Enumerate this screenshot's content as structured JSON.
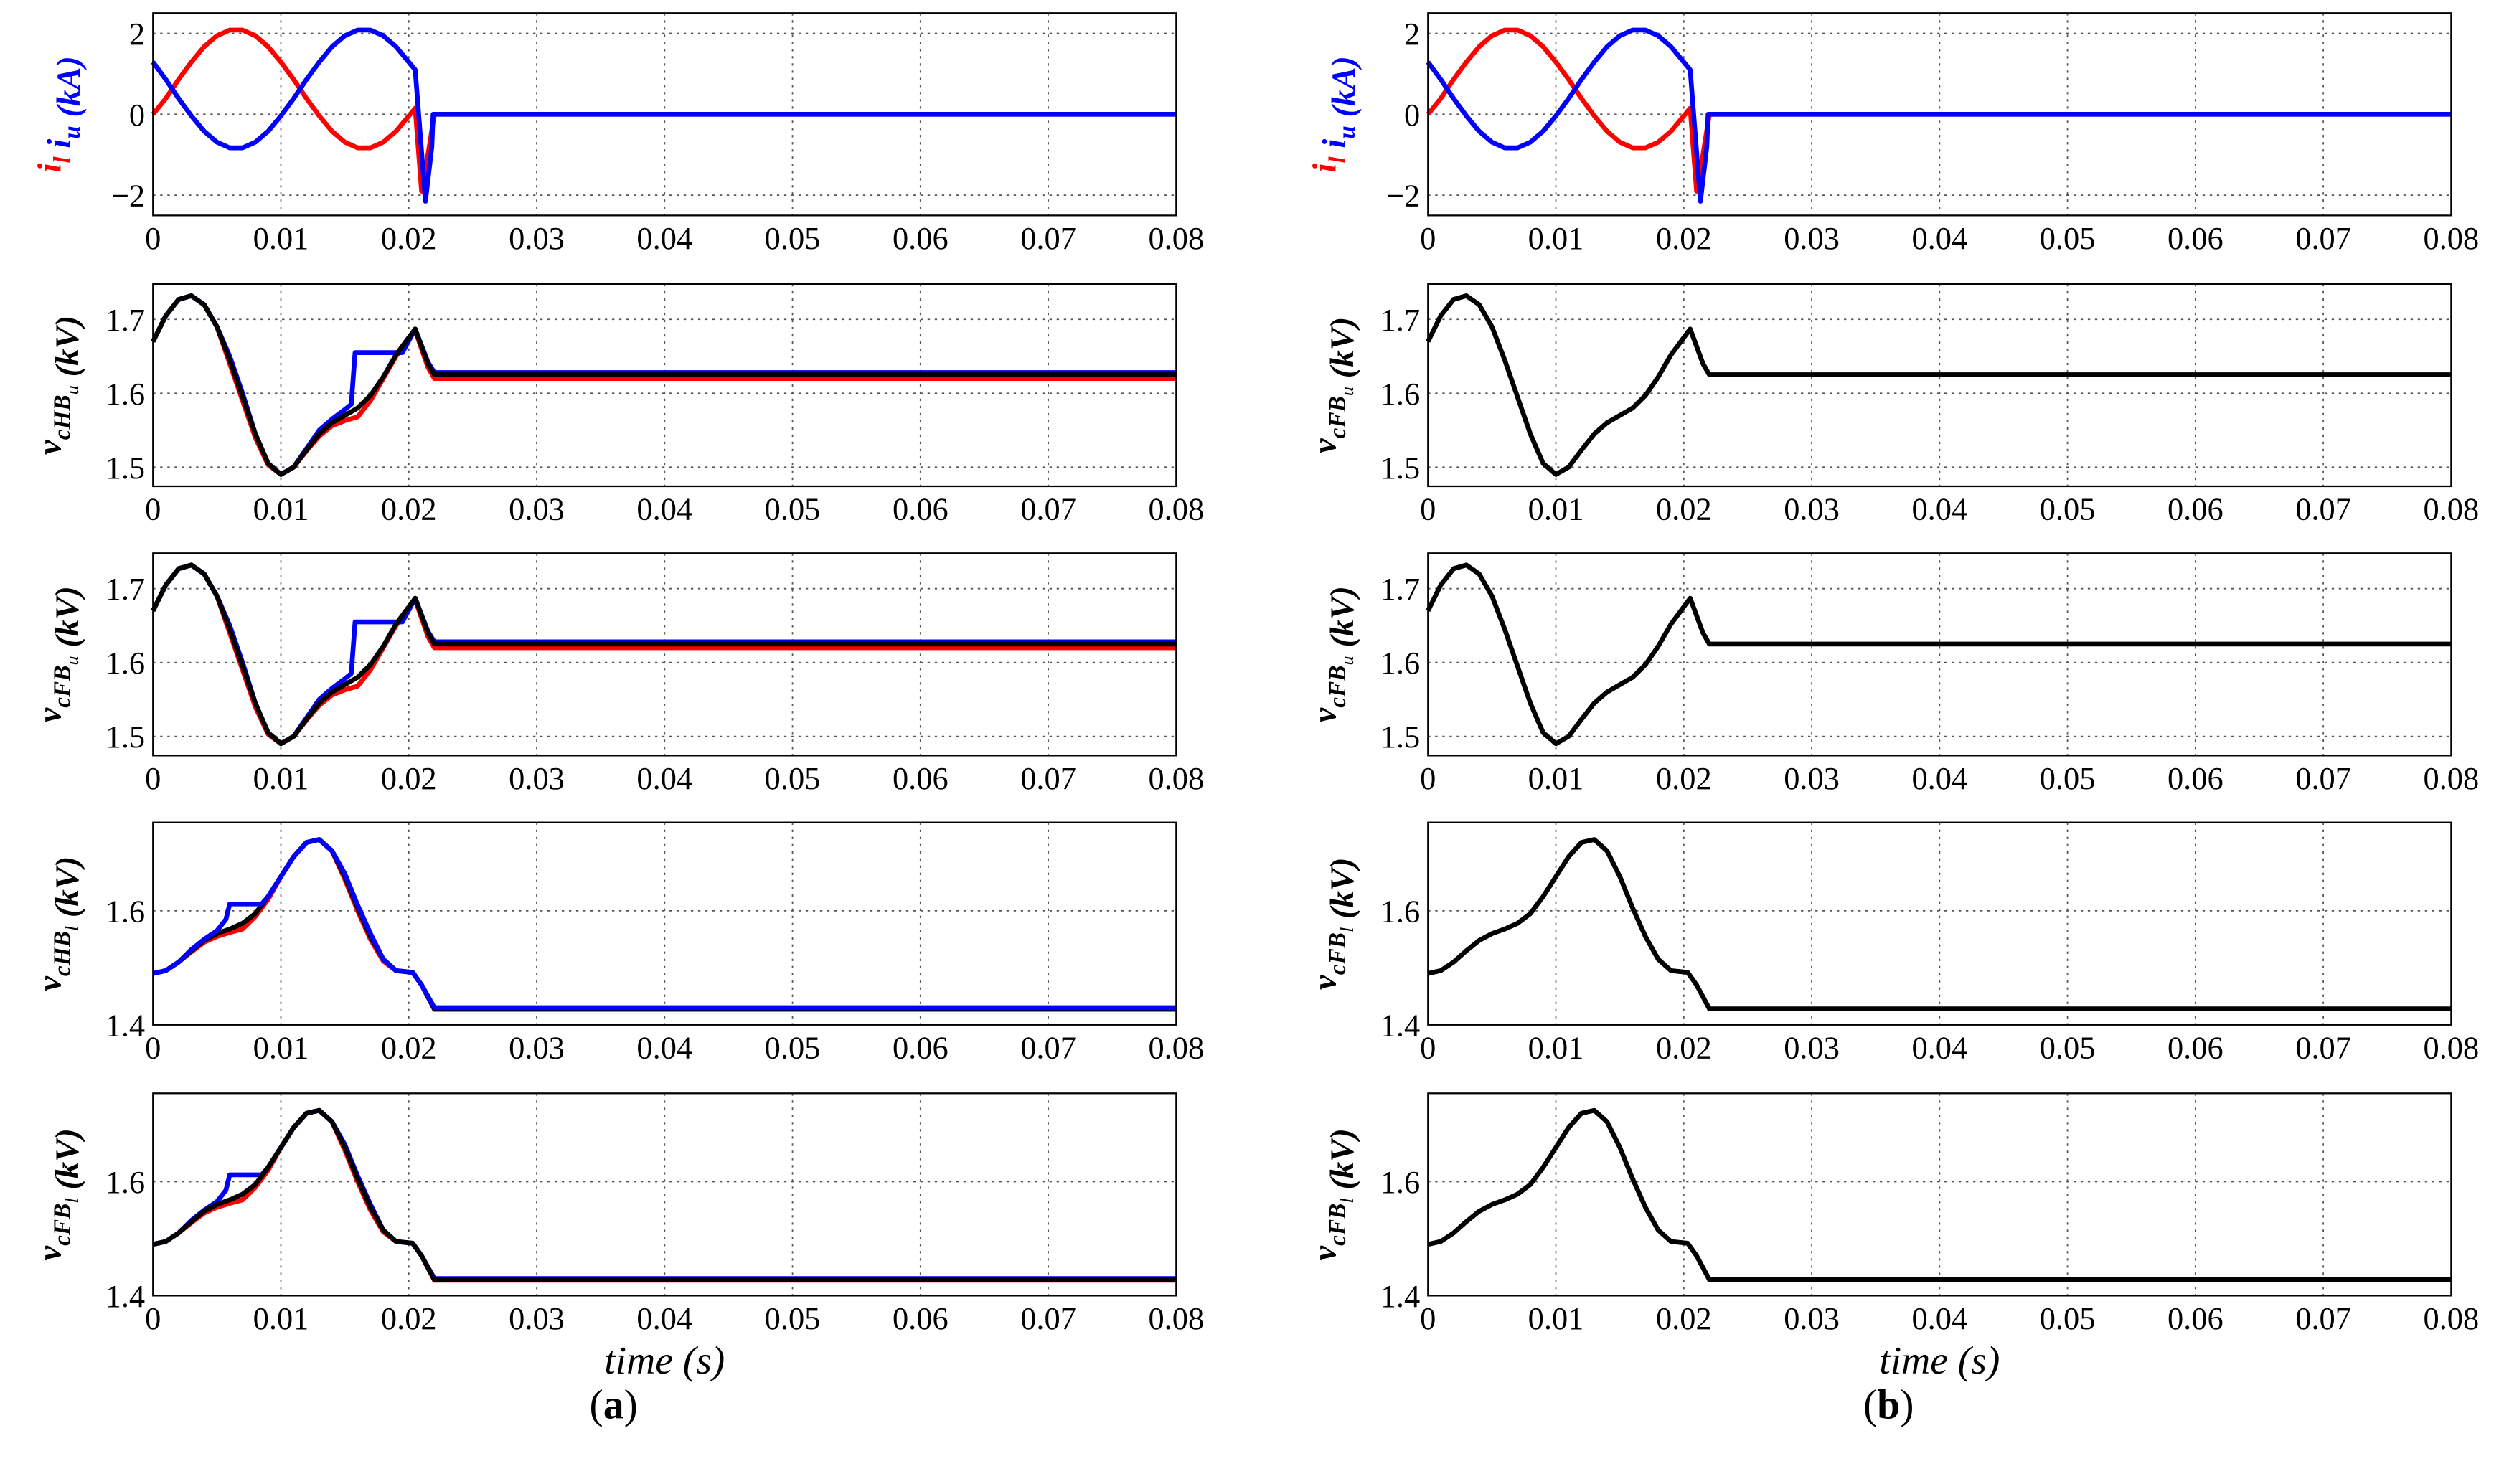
{
  "curves": {
    "IL": [
      [
        0,
        0
      ],
      [
        0.001,
        0.39
      ],
      [
        0.002,
        0.86
      ],
      [
        0.003,
        1.29
      ],
      [
        0.004,
        1.67
      ],
      [
        0.005,
        1.94
      ],
      [
        0.006,
        2.08
      ],
      [
        0.007,
        2.08
      ],
      [
        0.008,
        1.94
      ],
      [
        0.009,
        1.67
      ],
      [
        0.01,
        1.29
      ],
      [
        0.011,
        0.86
      ],
      [
        0.012,
        0.39
      ],
      [
        0.013,
        -0.04
      ],
      [
        0.014,
        -0.42
      ],
      [
        0.015,
        -0.69
      ],
      [
        0.016,
        -0.83
      ],
      [
        0.017,
        -0.83
      ],
      [
        0.018,
        -0.69
      ],
      [
        0.019,
        -0.42
      ],
      [
        0.02,
        -0.04
      ],
      [
        0.0205,
        0.15
      ],
      [
        0.021,
        -1.9
      ],
      [
        0.0215,
        -1.0
      ],
      [
        0.022,
        0
      ],
      [
        0.08,
        0
      ]
    ],
    "IU": [
      [
        0,
        1.29
      ],
      [
        0.001,
        0.86
      ],
      [
        0.002,
        0.39
      ],
      [
        0.003,
        -0.04
      ],
      [
        0.004,
        -0.42
      ],
      [
        0.005,
        -0.69
      ],
      [
        0.006,
        -0.83
      ],
      [
        0.007,
        -0.83
      ],
      [
        0.008,
        -0.69
      ],
      [
        0.009,
        -0.42
      ],
      [
        0.01,
        -0.04
      ],
      [
        0.011,
        0.39
      ],
      [
        0.012,
        0.86
      ],
      [
        0.013,
        1.29
      ],
      [
        0.014,
        1.67
      ],
      [
        0.015,
        1.94
      ],
      [
        0.016,
        2.08
      ],
      [
        0.017,
        2.08
      ],
      [
        0.018,
        1.94
      ],
      [
        0.019,
        1.67
      ],
      [
        0.0205,
        1.1
      ],
      [
        0.0213,
        -2.15
      ],
      [
        0.0218,
        -0.8
      ],
      [
        0.0219,
        0
      ],
      [
        0.08,
        0
      ]
    ],
    "VU_black": [
      [
        0,
        1.67
      ],
      [
        0.001,
        1.705
      ],
      [
        0.002,
        1.727
      ],
      [
        0.003,
        1.732
      ],
      [
        0.004,
        1.72
      ],
      [
        0.005,
        1.69
      ],
      [
        0.006,
        1.645
      ],
      [
        0.007,
        1.595
      ],
      [
        0.008,
        1.545
      ],
      [
        0.009,
        1.505
      ],
      [
        0.01,
        1.49
      ],
      [
        0.011,
        1.5
      ],
      [
        0.012,
        1.523
      ],
      [
        0.013,
        1.545
      ],
      [
        0.014,
        1.56
      ],
      [
        0.015,
        1.57
      ],
      [
        0.016,
        1.58
      ],
      [
        0.017,
        1.597
      ],
      [
        0.018,
        1.622
      ],
      [
        0.019,
        1.652
      ],
      [
        0.0205,
        1.687
      ],
      [
        0.0215,
        1.64
      ],
      [
        0.022,
        1.625
      ],
      [
        0.08,
        1.625
      ]
    ],
    "VU_blue": [
      [
        0,
        1.67
      ],
      [
        0.001,
        1.705
      ],
      [
        0.002,
        1.727
      ],
      [
        0.003,
        1.732
      ],
      [
        0.004,
        1.72
      ],
      [
        0.005,
        1.69
      ],
      [
        0.006,
        1.65
      ],
      [
        0.007,
        1.6
      ],
      [
        0.008,
        1.545
      ],
      [
        0.009,
        1.505
      ],
      [
        0.01,
        1.49
      ],
      [
        0.011,
        1.5
      ],
      [
        0.012,
        1.525
      ],
      [
        0.013,
        1.55
      ],
      [
        0.014,
        1.565
      ],
      [
        0.015,
        1.578
      ],
      [
        0.0155,
        1.585
      ],
      [
        0.0158,
        1.655
      ],
      [
        0.0195,
        1.655
      ],
      [
        0.0205,
        1.687
      ],
      [
        0.0215,
        1.642
      ],
      [
        0.022,
        1.628
      ],
      [
        0.08,
        1.628
      ]
    ],
    "VU_red": [
      [
        0,
        1.67
      ],
      [
        0.001,
        1.705
      ],
      [
        0.002,
        1.727
      ],
      [
        0.003,
        1.732
      ],
      [
        0.004,
        1.72
      ],
      [
        0.005,
        1.69
      ],
      [
        0.006,
        1.64
      ],
      [
        0.007,
        1.59
      ],
      [
        0.008,
        1.54
      ],
      [
        0.009,
        1.503
      ],
      [
        0.01,
        1.49
      ],
      [
        0.011,
        1.5
      ],
      [
        0.012,
        1.522
      ],
      [
        0.013,
        1.542
      ],
      [
        0.014,
        1.556
      ],
      [
        0.015,
        1.563
      ],
      [
        0.016,
        1.568
      ],
      [
        0.017,
        1.59
      ],
      [
        0.018,
        1.62
      ],
      [
        0.019,
        1.65
      ],
      [
        0.0205,
        1.685
      ],
      [
        0.0215,
        1.635
      ],
      [
        0.022,
        1.62
      ],
      [
        0.08,
        1.62
      ]
    ],
    "VL_black": [
      [
        0,
        1.49
      ],
      [
        0.001,
        1.495
      ],
      [
        0.002,
        1.51
      ],
      [
        0.003,
        1.53
      ],
      [
        0.004,
        1.548
      ],
      [
        0.005,
        1.56
      ],
      [
        0.006,
        1.568
      ],
      [
        0.007,
        1.578
      ],
      [
        0.008,
        1.595
      ],
      [
        0.009,
        1.625
      ],
      [
        0.01,
        1.66
      ],
      [
        0.011,
        1.695
      ],
      [
        0.012,
        1.72
      ],
      [
        0.013,
        1.725
      ],
      [
        0.014,
        1.705
      ],
      [
        0.015,
        1.66
      ],
      [
        0.016,
        1.605
      ],
      [
        0.017,
        1.555
      ],
      [
        0.018,
        1.515
      ],
      [
        0.019,
        1.495
      ],
      [
        0.0203,
        1.492
      ],
      [
        0.021,
        1.47
      ],
      [
        0.022,
        1.428
      ],
      [
        0.08,
        1.428
      ]
    ],
    "VL_blue": [
      [
        0,
        1.49
      ],
      [
        0.001,
        1.495
      ],
      [
        0.002,
        1.51
      ],
      [
        0.003,
        1.532
      ],
      [
        0.004,
        1.55
      ],
      [
        0.005,
        1.565
      ],
      [
        0.0057,
        1.585
      ],
      [
        0.006,
        1.612
      ],
      [
        0.0085,
        1.612
      ],
      [
        0.009,
        1.625
      ],
      [
        0.01,
        1.66
      ],
      [
        0.011,
        1.695
      ],
      [
        0.012,
        1.72
      ],
      [
        0.013,
        1.725
      ],
      [
        0.014,
        1.705
      ],
      [
        0.015,
        1.665
      ],
      [
        0.016,
        1.61
      ],
      [
        0.017,
        1.56
      ],
      [
        0.018,
        1.515
      ],
      [
        0.019,
        1.495
      ],
      [
        0.0203,
        1.492
      ],
      [
        0.021,
        1.47
      ],
      [
        0.022,
        1.43
      ],
      [
        0.08,
        1.43
      ]
    ],
    "VL_red": [
      [
        0,
        1.49
      ],
      [
        0.001,
        1.495
      ],
      [
        0.002,
        1.51
      ],
      [
        0.003,
        1.528
      ],
      [
        0.004,
        1.545
      ],
      [
        0.005,
        1.555
      ],
      [
        0.006,
        1.562
      ],
      [
        0.007,
        1.568
      ],
      [
        0.008,
        1.59
      ],
      [
        0.009,
        1.62
      ],
      [
        0.01,
        1.66
      ],
      [
        0.011,
        1.695
      ],
      [
        0.012,
        1.72
      ],
      [
        0.013,
        1.725
      ],
      [
        0.014,
        1.705
      ],
      [
        0.015,
        1.655
      ],
      [
        0.016,
        1.6
      ],
      [
        0.017,
        1.55
      ],
      [
        0.018,
        1.512
      ],
      [
        0.019,
        1.495
      ],
      [
        0.0203,
        1.492
      ],
      [
        0.021,
        1.47
      ],
      [
        0.022,
        1.427
      ],
      [
        0.08,
        1.427
      ]
    ]
  },
  "colors": {
    "red": "#ff0000",
    "blue": "#0000ff",
    "black": "#000000",
    "grid": "#555555"
  },
  "panel_labels": {
    "a": "a",
    "b": "b"
  },
  "chart_data": [
    {
      "type": "line",
      "panel": "a",
      "row": 0,
      "ylabel": [
        {
          "t": "i",
          "sub": "l",
          "color": "#ff0000"
        },
        {
          "t": " i",
          "sub": "u",
          "color": "#0000ff"
        },
        {
          "t": " (kA)",
          "color": "#0000ff"
        }
      ],
      "xlabel": "",
      "xlim": [
        0,
        0.08
      ],
      "ylim": [
        -2.5,
        2.5
      ],
      "xticks": [
        "0",
        "0.01",
        "0.02",
        "0.03",
        "0.04",
        "0.05",
        "0.06",
        "0.07",
        "0.08"
      ],
      "yticks": [
        "-2",
        "0",
        "2"
      ],
      "grid": true,
      "series": [
        {
          "name": "i_l",
          "curve": "IL",
          "color": "#ff0000"
        },
        {
          "name": "i_u",
          "curve": "IU",
          "color": "#0000ff"
        }
      ]
    },
    {
      "type": "line",
      "panel": "a",
      "row": 1,
      "ylabel": [
        {
          "t": "v",
          "sub": "cHB",
          "subsub": "u",
          "color": "#000000"
        },
        {
          "t": "  (kV)",
          "color": "#000000"
        }
      ],
      "xlabel": "",
      "xlim": [
        0,
        0.08
      ],
      "ylim": [
        1.474,
        1.748
      ],
      "xticks": [
        "0",
        "0.01",
        "0.02",
        "0.03",
        "0.04",
        "0.05",
        "0.06",
        "0.07",
        "0.08"
      ],
      "yticks": [
        "1.5",
        "1.6",
        "1.7"
      ],
      "grid": true,
      "series": [
        {
          "name": "red",
          "curve": "VU_red",
          "color": "#ff0000"
        },
        {
          "name": "blue",
          "curve": "VU_blue",
          "color": "#0000ff"
        },
        {
          "name": "black",
          "curve": "VU_black",
          "color": "#000000"
        }
      ]
    },
    {
      "type": "line",
      "panel": "a",
      "row": 2,
      "ylabel": [
        {
          "t": "v",
          "sub": "cFB",
          "subsub": "u",
          "color": "#000000"
        },
        {
          "t": "  (kV)",
          "color": "#000000"
        }
      ],
      "xlabel": "",
      "xlim": [
        0,
        0.08
      ],
      "ylim": [
        1.474,
        1.748
      ],
      "xticks": [
        "0",
        "0.01",
        "0.02",
        "0.03",
        "0.04",
        "0.05",
        "0.06",
        "0.07",
        "0.08"
      ],
      "yticks": [
        "1.5",
        "1.6",
        "1.7"
      ],
      "grid": true,
      "series": [
        {
          "name": "red",
          "curve": "VU_red",
          "color": "#ff0000"
        },
        {
          "name": "blue",
          "curve": "VU_blue",
          "color": "#0000ff"
        },
        {
          "name": "black",
          "curve": "VU_black",
          "color": "#000000"
        }
      ]
    },
    {
      "type": "line",
      "panel": "a",
      "row": 3,
      "ylabel": [
        {
          "t": "v",
          "sub": "cHB",
          "subsub": "l",
          "color": "#000000"
        },
        {
          "t": "  (kV)",
          "color": "#000000"
        }
      ],
      "xlabel": "",
      "xlim": [
        0,
        0.08
      ],
      "ylim": [
        1.4,
        1.755
      ],
      "xticks": [
        "0",
        "0.01",
        "0.02",
        "0.03",
        "0.04",
        "0.05",
        "0.06",
        "0.07",
        "0.08"
      ],
      "yticks": [
        "1.4",
        "1.6"
      ],
      "grid": true,
      "series": [
        {
          "name": "red",
          "curve": "VL_red",
          "color": "#ff0000"
        },
        {
          "name": "black",
          "curve": "VL_black",
          "color": "#000000"
        },
        {
          "name": "blue",
          "curve": "VL_blue",
          "color": "#0000ff"
        }
      ]
    },
    {
      "type": "line",
      "panel": "a",
      "row": 4,
      "ylabel": [
        {
          "t": "v",
          "sub": "cFB",
          "subsub": "l",
          "color": "#000000"
        },
        {
          "t": "  (kV)",
          "color": "#000000"
        }
      ],
      "xlabel": "time (s)",
      "xlim": [
        0,
        0.08
      ],
      "ylim": [
        1.4,
        1.755
      ],
      "xticks": [
        "0",
        "0.01",
        "0.02",
        "0.03",
        "0.04",
        "0.05",
        "0.06",
        "0.07",
        "0.08"
      ],
      "yticks": [
        "1.4",
        "1.6"
      ],
      "grid": true,
      "series": [
        {
          "name": "red",
          "curve": "VL_red",
          "color": "#ff0000"
        },
        {
          "name": "blue",
          "curve": "VL_blue",
          "color": "#0000ff"
        },
        {
          "name": "black",
          "curve": "VL_black",
          "color": "#000000"
        }
      ]
    },
    {
      "type": "line",
      "panel": "b",
      "row": 0,
      "ylabel": [
        {
          "t": "i",
          "sub": "l",
          "color": "#ff0000"
        },
        {
          "t": " i",
          "sub": "u",
          "color": "#0000ff"
        },
        {
          "t": " (kA)",
          "color": "#0000ff"
        }
      ],
      "xlabel": "",
      "xlim": [
        0,
        0.08
      ],
      "ylim": [
        -2.5,
        2.5
      ],
      "xticks": [
        "0",
        "0.01",
        "0.02",
        "0.03",
        "0.04",
        "0.05",
        "0.06",
        "0.07",
        "0.08"
      ],
      "yticks": [
        "-2",
        "0",
        "2"
      ],
      "grid": true,
      "series": [
        {
          "name": "i_l",
          "curve": "IL",
          "color": "#ff0000"
        },
        {
          "name": "i_u",
          "curve": "IU",
          "color": "#0000ff"
        }
      ]
    },
    {
      "type": "line",
      "panel": "b",
      "row": 1,
      "ylabel": [
        {
          "t": "v",
          "sub": "cFB",
          "subsub": "u",
          "color": "#000000"
        },
        {
          "t": "  (kV)",
          "color": "#000000"
        }
      ],
      "xlabel": "",
      "xlim": [
        0,
        0.08
      ],
      "ylim": [
        1.474,
        1.748
      ],
      "xticks": [
        "0",
        "0.01",
        "0.02",
        "0.03",
        "0.04",
        "0.05",
        "0.06",
        "0.07",
        "0.08"
      ],
      "yticks": [
        "1.5",
        "1.6",
        "1.7"
      ],
      "grid": true,
      "series": [
        {
          "name": "black",
          "curve": "VU_black",
          "color": "#000000"
        }
      ]
    },
    {
      "type": "line",
      "panel": "b",
      "row": 2,
      "ylabel": [
        {
          "t": "v",
          "sub": "cFB",
          "subsub": "u",
          "color": "#000000"
        },
        {
          "t": "  (kV)",
          "color": "#000000"
        }
      ],
      "xlabel": "",
      "xlim": [
        0,
        0.08
      ],
      "ylim": [
        1.474,
        1.748
      ],
      "xticks": [
        "0",
        "0.01",
        "0.02",
        "0.03",
        "0.04",
        "0.05",
        "0.06",
        "0.07",
        "0.08"
      ],
      "yticks": [
        "1.5",
        "1.6",
        "1.7"
      ],
      "grid": true,
      "series": [
        {
          "name": "black",
          "curve": "VU_black",
          "color": "#000000"
        }
      ]
    },
    {
      "type": "line",
      "panel": "b",
      "row": 3,
      "ylabel": [
        {
          "t": "v",
          "sub": "cFB",
          "subsub": "l",
          "color": "#000000"
        },
        {
          "t": "  (kV)",
          "color": "#000000"
        }
      ],
      "xlabel": "",
      "xlim": [
        0,
        0.08
      ],
      "ylim": [
        1.4,
        1.755
      ],
      "xticks": [
        "0",
        "0.01",
        "0.02",
        "0.03",
        "0.04",
        "0.05",
        "0.06",
        "0.07",
        "0.08"
      ],
      "yticks": [
        "1.4",
        "1.6"
      ],
      "grid": true,
      "series": [
        {
          "name": "black",
          "curve": "VL_black",
          "color": "#000000"
        }
      ]
    },
    {
      "type": "line",
      "panel": "b",
      "row": 4,
      "ylabel": [
        {
          "t": "v",
          "sub": "cFB",
          "subsub": "l",
          "color": "#000000"
        },
        {
          "t": "  (kV)",
          "color": "#000000"
        }
      ],
      "xlabel": "time (s)",
      "xlim": [
        0,
        0.08
      ],
      "ylim": [
        1.4,
        1.755
      ],
      "xticks": [
        "0",
        "0.01",
        "0.02",
        "0.03",
        "0.04",
        "0.05",
        "0.06",
        "0.07",
        "0.08"
      ],
      "yticks": [
        "1.4",
        "1.6"
      ],
      "grid": true,
      "series": [
        {
          "name": "black",
          "curve": "VL_black",
          "color": "#000000"
        }
      ]
    }
  ]
}
